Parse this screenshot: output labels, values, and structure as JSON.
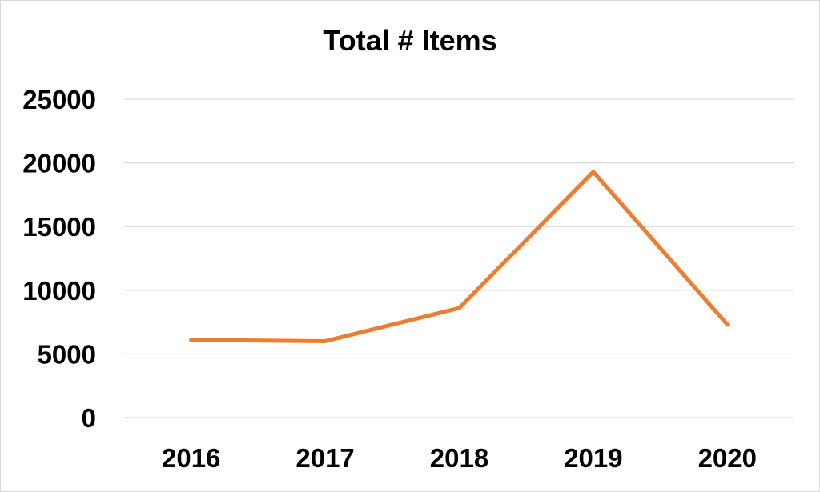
{
  "chart_data": {
    "type": "line",
    "title": "Total # Items",
    "xlabel": "",
    "ylabel": "",
    "categories": [
      "2016",
      "2017",
      "2018",
      "2019",
      "2020"
    ],
    "series": [
      {
        "values": [
          6100,
          6000,
          8600,
          19300,
          7300
        ]
      }
    ],
    "ylim": [
      0,
      25000
    ],
    "yticks": [
      0,
      5000,
      10000,
      15000,
      20000,
      25000
    ],
    "grid": true,
    "legend": "none",
    "colors": {
      "line": "#ED7D31",
      "grid": "#d9d9d9"
    }
  }
}
